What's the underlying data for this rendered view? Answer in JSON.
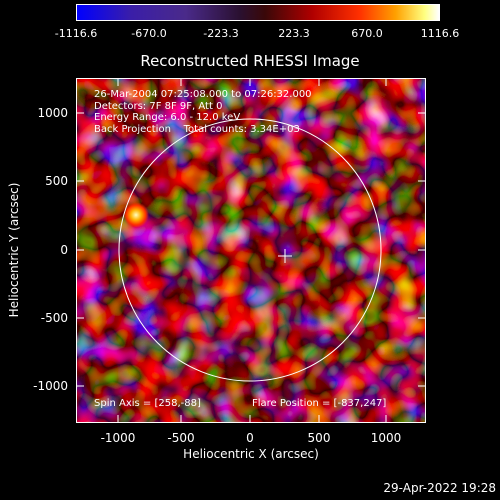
{
  "colorbar": {
    "ticks": [
      "-1116.6",
      "-670.0",
      "-223.3",
      "223.3",
      "670.0",
      "1116.6"
    ]
  },
  "title": "Reconstructed RHESSI Image",
  "info": {
    "time": "26-Mar-2004 07:25:08.000 to 07:26:32.000",
    "detectors": "Detectors: 7F 8F 9F, Att 0",
    "energy": "Energy Range: 6.0 - 12.0 keV",
    "method": "Back Projection",
    "counts": "Total counts: 3.34E+03",
    "spin_axis": "Spin Axis = [258,-88]",
    "flare_position": "Flare Position = [-837,247]"
  },
  "axes": {
    "xlabel": "Heliocentric X (arcsec)",
    "ylabel": "Heliocentric Y (arcsec)",
    "xticks": [
      "-1000",
      "-500",
      "0",
      "500",
      "1000"
    ],
    "yticks": [
      "1000",
      "500",
      "0",
      "-500",
      "-1000"
    ]
  },
  "timestamp": "29-Apr-2022 19:28"
}
